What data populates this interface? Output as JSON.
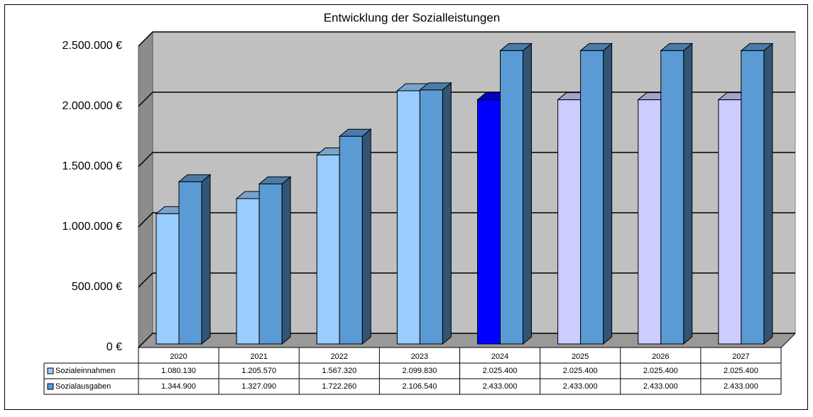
{
  "chart_data": {
    "type": "bar3d",
    "title": "Entwicklung der Sozialleistungen",
    "categories": [
      "2020",
      "2021",
      "2022",
      "2023",
      "2024",
      "2025",
      "2026",
      "2027"
    ],
    "series": [
      {
        "name": "Sozialeinnahmen",
        "color": "#99ccff",
        "colors": [
          "#99ccff",
          "#99ccff",
          "#99ccff",
          "#99ccff",
          "#0000ff",
          "#ccccff",
          "#ccccff",
          "#ccccff"
        ],
        "values": [
          1080130,
          1205570,
          1567320,
          2099830,
          2025400,
          2025400,
          2025400,
          2025400
        ],
        "value_labels": [
          "1.080.130",
          "1.205.570",
          "1.567.320",
          "2.099.830",
          "2.025.400",
          "2.025.400",
          "2.025.400",
          "2.025.400"
        ]
      },
      {
        "name": "Sozialausgaben",
        "color": "#5b9bd5",
        "colors": [
          "#5b9bd5",
          "#5b9bd5",
          "#5b9bd5",
          "#5b9bd5",
          "#5b9bd5",
          "#5b9bd5",
          "#5b9bd5",
          "#5b9bd5"
        ],
        "values": [
          1344900,
          1327090,
          1722260,
          2106540,
          2433000,
          2433000,
          2433000,
          2433000
        ],
        "value_labels": [
          "1.344.900",
          "1.327.090",
          "1.722.260",
          "2.106.540",
          "2.433.000",
          "2.433.000",
          "2.433.000",
          "2.433.000"
        ]
      }
    ],
    "ylim": [
      0,
      2500000
    ],
    "yticks": [
      {
        "value": 0,
        "label": "0 €"
      },
      {
        "value": 500000,
        "label": "500.000 €"
      },
      {
        "value": 1000000,
        "label": "1.000.000 €"
      },
      {
        "value": 1500000,
        "label": "1.500.000 €"
      },
      {
        "value": 2000000,
        "label": "2.000.000 €"
      },
      {
        "value": 2500000,
        "label": "2.500.000 €"
      }
    ],
    "grid": true,
    "data_table": true
  }
}
